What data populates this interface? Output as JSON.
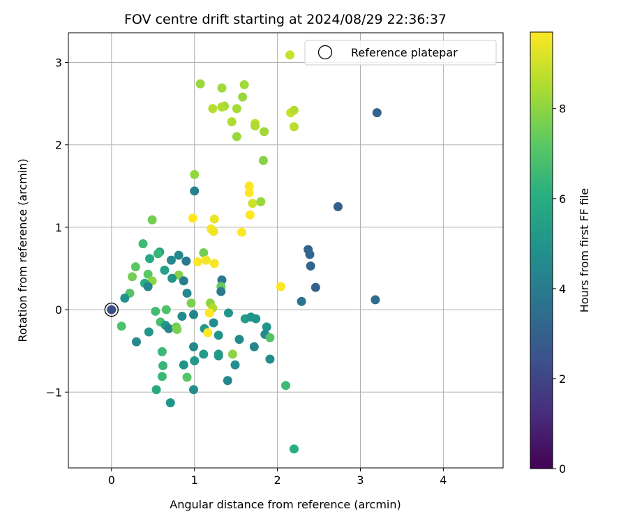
{
  "chart_data": {
    "type": "scatter",
    "title": "FOV centre drift starting at 2024/08/29 22:36:37",
    "xlabel": "Angular distance from reference (arcmin)",
    "ylabel": "Rotation from reference (arcmin)",
    "xlim": [
      -0.52,
      4.72
    ],
    "ylim": [
      -1.92,
      3.36
    ],
    "xticks": [
      "0",
      "1",
      "2",
      "3",
      "4"
    ],
    "yticks": [
      "−1",
      "0",
      "1",
      "2",
      "3"
    ],
    "grid": true,
    "legend": {
      "placement": "top-right",
      "entries": [
        "Reference platepar"
      ]
    },
    "colorbar": {
      "label": "Hours from first FF file",
      "min": 0,
      "max": 9.7,
      "ticks": [
        "0",
        "2",
        "4",
        "6",
        "8"
      ],
      "colormap": "viridis"
    },
    "reference_point": {
      "x": 0,
      "y": 0,
      "h": 2.3
    },
    "points": [
      {
        "x": 2.15,
        "y": 3.09,
        "h": 8.9
      },
      {
        "x": 1.07,
        "y": 2.74,
        "h": 8.2
      },
      {
        "x": 1.33,
        "y": 2.69,
        "h": 8.3
      },
      {
        "x": 1.6,
        "y": 2.73,
        "h": 8.3
      },
      {
        "x": 1.58,
        "y": 2.58,
        "h": 8.2
      },
      {
        "x": 1.22,
        "y": 2.44,
        "h": 8.6
      },
      {
        "x": 1.36,
        "y": 2.47,
        "h": 8.3
      },
      {
        "x": 1.33,
        "y": 2.46,
        "h": 8.5
      },
      {
        "x": 1.51,
        "y": 2.44,
        "h": 8.4
      },
      {
        "x": 1.45,
        "y": 2.28,
        "h": 8.5
      },
      {
        "x": 1.73,
        "y": 2.26,
        "h": 8.8
      },
      {
        "x": 1.73,
        "y": 2.23,
        "h": 8.5
      },
      {
        "x": 1.84,
        "y": 2.16,
        "h": 8.3
      },
      {
        "x": 1.51,
        "y": 2.1,
        "h": 8.2
      },
      {
        "x": 2.16,
        "y": 2.39,
        "h": 8.9
      },
      {
        "x": 2.2,
        "y": 2.42,
        "h": 8.6
      },
      {
        "x": 2.2,
        "y": 2.22,
        "h": 8.7
      },
      {
        "x": 3.2,
        "y": 2.39,
        "h": 3.1
      },
      {
        "x": 1.83,
        "y": 1.81,
        "h": 7.9
      },
      {
        "x": 1.0,
        "y": 1.64,
        "h": 8.1
      },
      {
        "x": 1.0,
        "y": 1.44,
        "h": 4.2
      },
      {
        "x": 1.66,
        "y": 1.5,
        "h": 9.7
      },
      {
        "x": 1.66,
        "y": 1.42,
        "h": 9.7
      },
      {
        "x": 1.7,
        "y": 1.29,
        "h": 9.0
      },
      {
        "x": 1.8,
        "y": 1.31,
        "h": 8.2
      },
      {
        "x": 1.67,
        "y": 1.15,
        "h": 9.7
      },
      {
        "x": 2.73,
        "y": 1.25,
        "h": 3.0
      },
      {
        "x": 0.49,
        "y": 1.09,
        "h": 7.6
      },
      {
        "x": 0.98,
        "y": 1.11,
        "h": 9.7
      },
      {
        "x": 1.24,
        "y": 1.1,
        "h": 9.4
      },
      {
        "x": 1.2,
        "y": 0.98,
        "h": 9.6
      },
      {
        "x": 1.23,
        "y": 0.95,
        "h": 9.5
      },
      {
        "x": 1.57,
        "y": 0.94,
        "h": 9.7
      },
      {
        "x": 0.38,
        "y": 0.8,
        "h": 6.6
      },
      {
        "x": 0.58,
        "y": 0.7,
        "h": 5.5
      },
      {
        "x": 0.56,
        "y": 0.68,
        "h": 6.4
      },
      {
        "x": 0.46,
        "y": 0.62,
        "h": 5.8
      },
      {
        "x": 0.81,
        "y": 0.66,
        "h": 4.5
      },
      {
        "x": 1.11,
        "y": 0.69,
        "h": 7.6
      },
      {
        "x": 0.72,
        "y": 0.6,
        "h": 4.5
      },
      {
        "x": 0.9,
        "y": 0.59,
        "h": 3.9
      },
      {
        "x": 1.04,
        "y": 0.58,
        "h": 9.7
      },
      {
        "x": 1.14,
        "y": 0.6,
        "h": 9.5
      },
      {
        "x": 1.24,
        "y": 0.56,
        "h": 9.6
      },
      {
        "x": 2.37,
        "y": 0.73,
        "h": 3.1
      },
      {
        "x": 2.39,
        "y": 0.67,
        "h": 3.2
      },
      {
        "x": 2.4,
        "y": 0.53,
        "h": 3.2
      },
      {
        "x": 0.29,
        "y": 0.52,
        "h": 7.2
      },
      {
        "x": 0.64,
        "y": 0.48,
        "h": 5.5
      },
      {
        "x": 0.44,
        "y": 0.43,
        "h": 7.2
      },
      {
        "x": 0.81,
        "y": 0.42,
        "h": 7.9
      },
      {
        "x": 0.25,
        "y": 0.4,
        "h": 7.6
      },
      {
        "x": 0.73,
        "y": 0.38,
        "h": 5.0
      },
      {
        "x": 0.87,
        "y": 0.35,
        "h": 4.1
      },
      {
        "x": 1.33,
        "y": 0.36,
        "h": 3.9
      },
      {
        "x": 0.49,
        "y": 0.35,
        "h": 8.0
      },
      {
        "x": 0.4,
        "y": 0.32,
        "h": 6.0
      },
      {
        "x": 0.44,
        "y": 0.28,
        "h": 4.4
      },
      {
        "x": 1.32,
        "y": 0.28,
        "h": 7.4
      },
      {
        "x": 2.46,
        "y": 0.27,
        "h": 3.0
      },
      {
        "x": 2.04,
        "y": 0.28,
        "h": 9.7
      },
      {
        "x": 0.22,
        "y": 0.2,
        "h": 7.1
      },
      {
        "x": 0.91,
        "y": 0.2,
        "h": 4.5
      },
      {
        "x": 1.32,
        "y": 0.22,
        "h": 4.0
      },
      {
        "x": 0.16,
        "y": 0.14,
        "h": 4.9
      },
      {
        "x": 2.29,
        "y": 0.1,
        "h": 3.7
      },
      {
        "x": 3.18,
        "y": 0.12,
        "h": 3.4
      },
      {
        "x": 0.96,
        "y": 0.08,
        "h": 7.7
      },
      {
        "x": 1.19,
        "y": 0.08,
        "h": 8.0
      },
      {
        "x": 1.22,
        "y": 0.02,
        "h": 8.5
      },
      {
        "x": 0.53,
        "y": -0.02,
        "h": 6.7
      },
      {
        "x": 0.66,
        "y": 0.0,
        "h": 6.9
      },
      {
        "x": 1.18,
        "y": -0.04,
        "h": 9.7
      },
      {
        "x": 0.85,
        "y": -0.08,
        "h": 4.6
      },
      {
        "x": 0.99,
        "y": -0.06,
        "h": 4.4
      },
      {
        "x": 1.41,
        "y": -0.04,
        "h": 5.0
      },
      {
        "x": 1.61,
        "y": -0.11,
        "h": 5.4
      },
      {
        "x": 1.68,
        "y": -0.09,
        "h": 4.9
      },
      {
        "x": 1.74,
        "y": -0.11,
        "h": 5.0
      },
      {
        "x": 0.59,
        "y": -0.15,
        "h": 6.8
      },
      {
        "x": 0.65,
        "y": -0.19,
        "h": 5.2
      },
      {
        "x": 1.23,
        "y": -0.16,
        "h": 4.7
      },
      {
        "x": 0.12,
        "y": -0.2,
        "h": 6.9
      },
      {
        "x": 0.69,
        "y": -0.23,
        "h": 4.4
      },
      {
        "x": 0.78,
        "y": -0.21,
        "h": 7.5
      },
      {
        "x": 0.79,
        "y": -0.24,
        "h": 7.7
      },
      {
        "x": 1.12,
        "y": -0.23,
        "h": 5.2
      },
      {
        "x": 1.87,
        "y": -0.21,
        "h": 5.0
      },
      {
        "x": 0.45,
        "y": -0.27,
        "h": 5.1
      },
      {
        "x": 1.16,
        "y": -0.28,
        "h": 9.7
      },
      {
        "x": 1.29,
        "y": -0.31,
        "h": 5.0
      },
      {
        "x": 1.85,
        "y": -0.3,
        "h": 4.5
      },
      {
        "x": 1.91,
        "y": -0.34,
        "h": 7.0
      },
      {
        "x": 0.3,
        "y": -0.39,
        "h": 4.5
      },
      {
        "x": 1.54,
        "y": -0.36,
        "h": 4.6
      },
      {
        "x": 1.72,
        "y": -0.45,
        "h": 4.5
      },
      {
        "x": 0.99,
        "y": -0.45,
        "h": 4.5
      },
      {
        "x": 0.61,
        "y": -0.51,
        "h": 6.5
      },
      {
        "x": 1.11,
        "y": -0.54,
        "h": 5.3
      },
      {
        "x": 1.46,
        "y": -0.54,
        "h": 8.0
      },
      {
        "x": 1.29,
        "y": -0.56,
        "h": 5.0
      },
      {
        "x": 1.29,
        "y": -0.54,
        "h": 5.2
      },
      {
        "x": 1.91,
        "y": -0.6,
        "h": 4.6
      },
      {
        "x": 1.0,
        "y": -0.62,
        "h": 5.1
      },
      {
        "x": 0.62,
        "y": -0.68,
        "h": 6.4
      },
      {
        "x": 0.87,
        "y": -0.67,
        "h": 4.9
      },
      {
        "x": 1.49,
        "y": -0.67,
        "h": 4.7
      },
      {
        "x": 0.61,
        "y": -0.81,
        "h": 6.5
      },
      {
        "x": 0.91,
        "y": -0.82,
        "h": 7.1
      },
      {
        "x": 1.4,
        "y": -0.86,
        "h": 4.4
      },
      {
        "x": 2.1,
        "y": -0.92,
        "h": 6.6
      },
      {
        "x": 0.54,
        "y": -0.97,
        "h": 5.9
      },
      {
        "x": 0.99,
        "y": -0.97,
        "h": 4.6
      },
      {
        "x": 0.71,
        "y": -1.13,
        "h": 5.0
      },
      {
        "x": 2.2,
        "y": -1.69,
        "h": 6.0
      }
    ]
  }
}
